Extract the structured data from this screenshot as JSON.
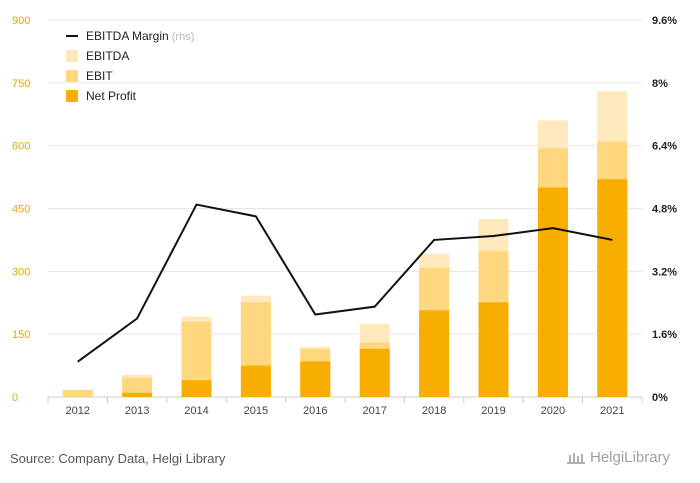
{
  "chart_data": {
    "type": "bar",
    "categories": [
      "2012",
      "2013",
      "2014",
      "2015",
      "2016",
      "2017",
      "2018",
      "2019",
      "2020",
      "2021"
    ],
    "series": [
      {
        "name": "EBITDA",
        "kind": "bar",
        "color": "#fee9bd",
        "values": [
          17,
          53,
          192,
          242,
          120,
          175,
          342,
          425,
          660,
          730
        ]
      },
      {
        "name": "EBIT",
        "kind": "bar",
        "color": "#fed77f",
        "values": [
          17,
          46,
          180,
          226,
          115,
          130,
          308,
          348,
          594,
          610
        ]
      },
      {
        "name": "Net Profit",
        "kind": "bar",
        "color": "#f8ae00",
        "values": [
          0,
          10,
          40,
          75,
          85,
          115,
          207,
          226,
          500,
          520
        ]
      },
      {
        "name": "EBITDA Margin",
        "name_suffix": "(rhs)",
        "kind": "line",
        "axis": "right",
        "color": "#111111",
        "values": [
          0.9,
          2.0,
          4.9,
          4.6,
          2.1,
          2.3,
          4.0,
          4.1,
          4.3,
          4.0
        ]
      }
    ],
    "y_left": {
      "ticks": [
        "0",
        "150",
        "300",
        "450",
        "600",
        "750",
        "900"
      ],
      "ylim": [
        0,
        900
      ]
    },
    "y_right": {
      "ticks": [
        "0%",
        "1.6%",
        "3.2%",
        "4.8%",
        "6.4%",
        "8%",
        "9.6%"
      ],
      "ylim": [
        0,
        9.6
      ]
    },
    "grid": true,
    "legend_position": "top-left"
  },
  "footer": {
    "source": "Source: Company Data, Helgi Library",
    "logo_text": "HelgiLibrary"
  }
}
